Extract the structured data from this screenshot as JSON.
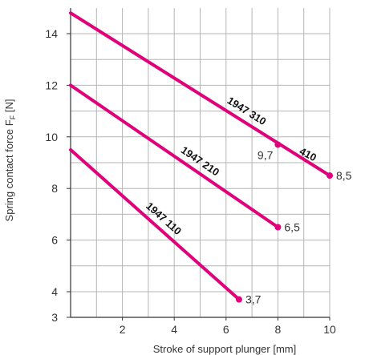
{
  "chart_data": {
    "type": "line",
    "title": "",
    "xlabel": "Stroke of support plunger [mm]",
    "ylabel": "Spring contact force F",
    "ylabel_sub": "F",
    "ylabel_unit": "[N]",
    "xlim": [
      0,
      10
    ],
    "ylim": [
      3,
      15
    ],
    "xticks": [
      2,
      4,
      6,
      8,
      10
    ],
    "yticks": [
      3,
      4,
      6,
      8,
      10,
      12,
      14
    ],
    "grid": true,
    "line_color": "#e0007a",
    "series": [
      {
        "name": "1947 310",
        "x": [
          0,
          10
        ],
        "y": [
          14.8,
          8.5
        ],
        "markers": [
          {
            "x": 8,
            "y": 9.7,
            "label": "9,7"
          },
          {
            "x": 10,
            "y": 8.5,
            "label": "8,5"
          }
        ]
      },
      {
        "name": "1947 210",
        "x": [
          0,
          8
        ],
        "y": [
          12.0,
          6.5
        ],
        "markers": [
          {
            "x": 8,
            "y": 6.5,
            "label": "6,5"
          }
        ]
      },
      {
        "name": "1947 110",
        "x": [
          0,
          6.5
        ],
        "y": [
          9.5,
          3.7
        ],
        "markers": [
          {
            "x": 6.5,
            "y": 3.7,
            "label": "3,7"
          }
        ]
      }
    ],
    "annotations": [
      {
        "text": "410",
        "x": 9.1,
        "y": 9.2
      }
    ]
  }
}
